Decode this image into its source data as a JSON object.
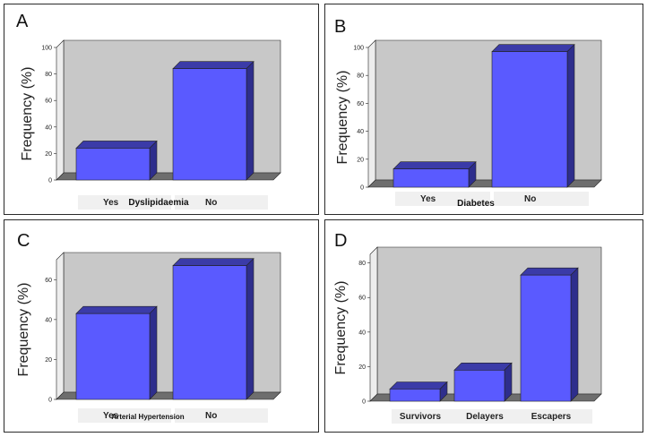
{
  "colors": {
    "bar_front": "#5a5aff",
    "bar_top": "#3b3ba8",
    "bar_side": "#2e2e8c",
    "wall_back": "#c8c8c8",
    "wall_left": "#ededed",
    "floor": "#6e6e6e",
    "label_bg": "#f0f0f0"
  },
  "chart_data": [
    {
      "type": "bar",
      "panel_label": "A",
      "title": "",
      "xlabel": "Dyslipidaemia",
      "ylabel": "Frequency (%)",
      "ylim": [
        0,
        100
      ],
      "ticks": [
        "0",
        "20",
        "40",
        "60",
        "80",
        "100"
      ],
      "categories": [
        "Yes",
        "No"
      ],
      "values": [
        24,
        84
      ]
    },
    {
      "type": "bar",
      "panel_label": "B",
      "title": "",
      "xlabel": "Diabetes",
      "ylabel": "Frequency (%)",
      "ylim": [
        0,
        100
      ],
      "ticks": [
        "0",
        "20",
        "40",
        "60",
        "80",
        "100"
      ],
      "categories": [
        "Yes",
        "No"
      ],
      "values": [
        13,
        97
      ]
    },
    {
      "type": "bar",
      "panel_label": "C",
      "title": "",
      "xlabel": "Arterial Hypertension",
      "ylabel": "Frequency (%)",
      "ylim": [
        0,
        70
      ],
      "ticks": [
        "0",
        "20",
        "40",
        "60"
      ],
      "categories": [
        "Yes",
        "No"
      ],
      "values": [
        43,
        67
      ]
    },
    {
      "type": "bar",
      "panel_label": "D",
      "title": "",
      "xlabel": "",
      "ylabel": "Frequency (%)",
      "ylim": [
        0,
        85
      ],
      "ticks": [
        "0",
        "20",
        "40",
        "60",
        "80"
      ],
      "categories": [
        "Survivors",
        "Delayers",
        "Escapers"
      ],
      "values": [
        7,
        18,
        73
      ]
    }
  ]
}
